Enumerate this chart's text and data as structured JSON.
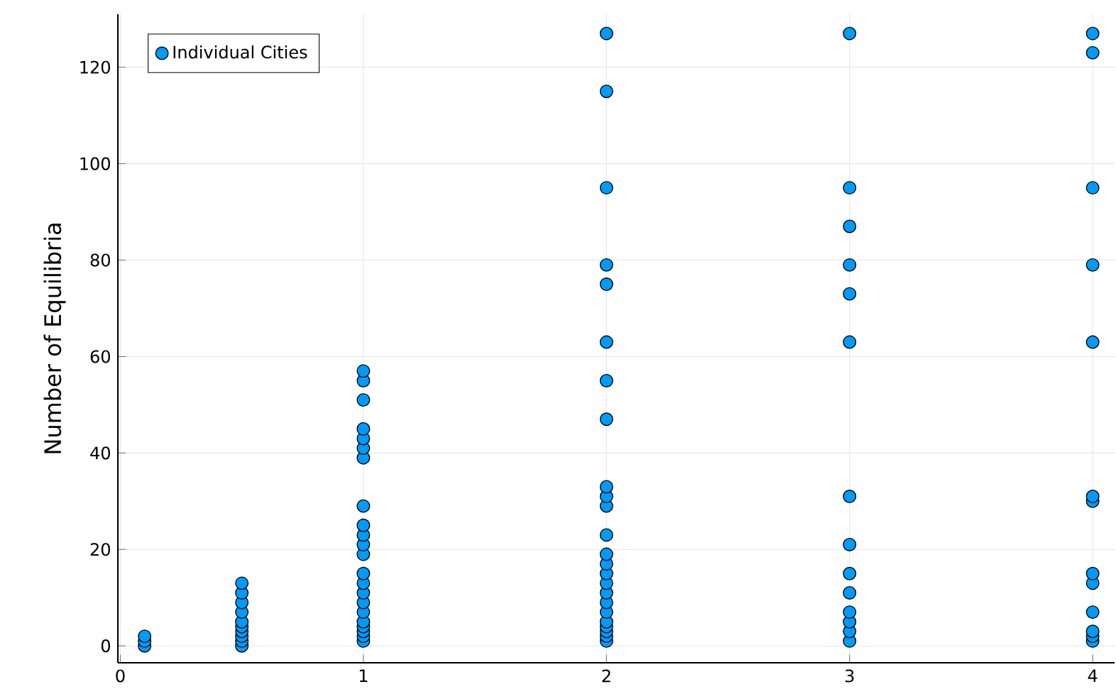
{
  "chart_data": {
    "type": "scatter",
    "ylabel": "Number of Equilibria",
    "xlim": [
      -0.01,
      4.09
    ],
    "ylim": [
      -3.5,
      131
    ],
    "xticks": [
      0,
      1,
      2,
      3,
      4
    ],
    "yticks": [
      0,
      20,
      40,
      60,
      80,
      100,
      120
    ],
    "grid": true,
    "legend": "top left",
    "series": [
      {
        "name": "Individual Cities",
        "color": "#009af9",
        "x": [
          0.1,
          0.1,
          0.1,
          0.5,
          0.5,
          0.5,
          0.5,
          0.5,
          0.5,
          0.5,
          0.5,
          0.5,
          0.5,
          1,
          1,
          1,
          1,
          1,
          1,
          1,
          1,
          1,
          1,
          1,
          1,
          1,
          1,
          1,
          1,
          1,
          1,
          1,
          1,
          1,
          1,
          2,
          2,
          2,
          2,
          2,
          2,
          2,
          2,
          2,
          2,
          2,
          2,
          2,
          2,
          2,
          2,
          2,
          2,
          2,
          2,
          2,
          2,
          2,
          2,
          3,
          3,
          3,
          3,
          3,
          3,
          3,
          3,
          3,
          3,
          3,
          3,
          3,
          3,
          4,
          4,
          4,
          4,
          4,
          4,
          4,
          4,
          4,
          4,
          4,
          4,
          4
        ],
        "values": [
          0,
          1,
          2,
          0,
          1,
          2,
          3,
          4,
          5,
          7,
          9,
          11,
          13,
          1,
          2,
          3,
          4,
          5,
          7,
          9,
          11,
          13,
          15,
          19,
          21,
          23,
          25,
          29,
          39,
          41,
          43,
          45,
          51,
          55,
          57,
          1,
          2,
          3,
          4,
          5,
          7,
          9,
          11,
          13,
          15,
          17,
          19,
          23,
          29,
          31,
          33,
          47,
          55,
          63,
          75,
          79,
          95,
          115,
          127,
          1,
          3,
          5,
          7,
          11,
          15,
          21,
          31,
          63,
          73,
          79,
          87,
          95,
          127,
          1,
          2,
          3,
          7,
          13,
          15,
          30,
          31,
          63,
          79,
          95,
          123,
          127
        ]
      }
    ]
  }
}
